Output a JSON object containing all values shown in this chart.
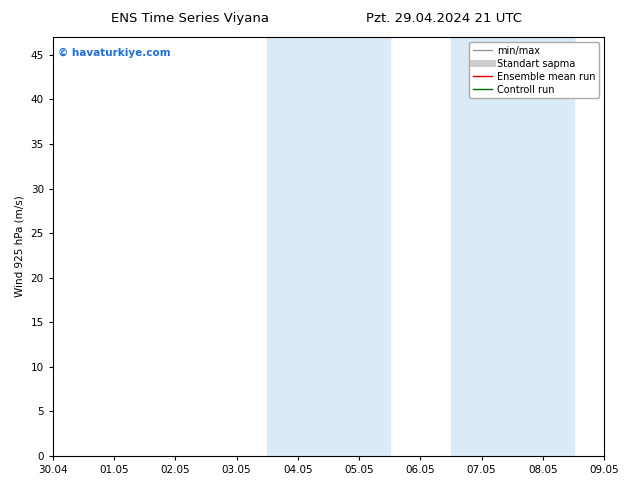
{
  "title_left": "ENS Time Series Viyana",
  "title_right": "Pzt. 29.04.2024 21 UTC",
  "ylabel": "Wind 925 hPa (m/s)",
  "xlim": [
    0,
    9
  ],
  "ylim": [
    0,
    47
  ],
  "yticks": [
    0,
    5,
    10,
    15,
    20,
    25,
    30,
    35,
    40,
    45
  ],
  "xtick_labels": [
    "30.04",
    "01.05",
    "02.05",
    "03.05",
    "04.05",
    "05.05",
    "06.05",
    "07.05",
    "08.05",
    "09.05"
  ],
  "shaded_regions": [
    [
      3.5,
      4.5
    ],
    [
      4.5,
      5.5
    ],
    [
      6.5,
      7.5
    ],
    [
      7.5,
      8.5
    ]
  ],
  "shaded_color": "#daeaf7",
  "bg_color": "#ffffff",
  "watermark_text": "© havaturkiye.com",
  "watermark_color": "#1e6fd4",
  "legend_items": [
    {
      "label": "min/max",
      "color": "#999999",
      "lw": 1.0
    },
    {
      "label": "Standart sapma",
      "color": "#cccccc",
      "lw": 5
    },
    {
      "label": "Ensemble mean run",
      "color": "#dd0000",
      "lw": 1.0
    },
    {
      "label": "Controll run",
      "color": "#006600",
      "lw": 1.0
    }
  ],
  "font_size": 7.5,
  "title_font_size": 9.5,
  "watermark_font_size": 7.5
}
